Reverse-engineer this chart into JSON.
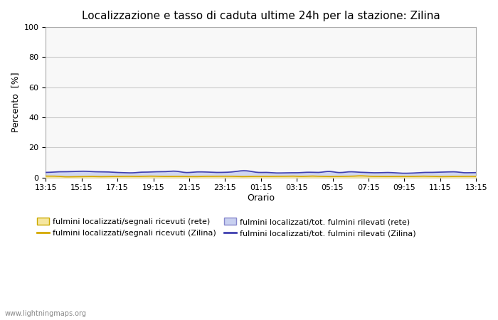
{
  "title": "Localizzazione e tasso di caduta ultime 24h per la stazione: Zilina",
  "ylabel": "Percento  [%]",
  "xlabel": "Orario",
  "ylim": [
    0,
    100
  ],
  "yticks": [
    0,
    20,
    40,
    60,
    80,
    100
  ],
  "xtick_labels": [
    "13:15",
    "15:15",
    "17:15",
    "19:15",
    "21:15",
    "23:15",
    "01:15",
    "03:15",
    "05:15",
    "07:15",
    "09:15",
    "11:15",
    "13:15"
  ],
  "fill_rete_color": "#f5e6a0",
  "fill_zilina_color": "#c8d0f0",
  "line_rete_color": "#d4a800",
  "line_zilina_color": "#4040b0",
  "legend": [
    "fulmini localizzati/segnali ricevuti (rete)",
    "fulmini localizzati/segnali ricevuti (Zilina)",
    "fulmini localizzati/tot. fulmini rilevati (rete)",
    "fulmini localizzati/tot. fulmini rilevati (Zilina)"
  ],
  "watermark": "www.lightningmaps.org",
  "background_color": "#ffffff",
  "plot_bg_color": "#f8f8f8",
  "grid_color": "#cccccc",
  "n_points": 288
}
